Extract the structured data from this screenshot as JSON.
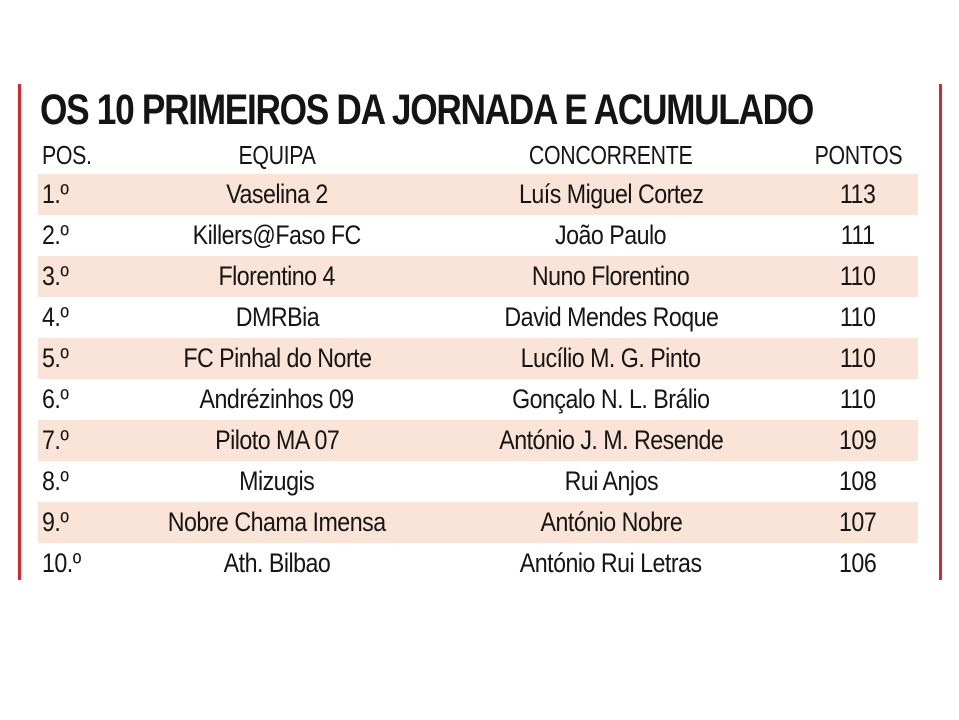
{
  "title": "OS 10 PRIMEIROS DA JORNADA E ACUMULADO",
  "colors": {
    "accent_rule": "#d8262d",
    "row_shade": "#f9e4d7",
    "text": "#151515"
  },
  "table": {
    "headers": {
      "pos": "POS.",
      "equipa": "EQUIPA",
      "concorrente": "CONCORRENTE",
      "pontos": "PONTOS"
    },
    "rows": [
      {
        "pos": "1.º",
        "equipa": "Vaselina 2",
        "concorrente": "Luís Miguel Cortez",
        "pontos": "113"
      },
      {
        "pos": "2.º",
        "equipa": "Killers@Faso FC",
        "concorrente": "João Paulo",
        "pontos": "111"
      },
      {
        "pos": "3.º",
        "equipa": "Florentino 4",
        "concorrente": "Nuno Florentino",
        "pontos": "110"
      },
      {
        "pos": "4.º",
        "equipa": "DMRBia",
        "concorrente": "David Mendes Roque",
        "pontos": "110"
      },
      {
        "pos": "5.º",
        "equipa": "FC Pinhal do Norte",
        "concorrente": "Lucílio M. G. Pinto",
        "pontos": "110"
      },
      {
        "pos": "6.º",
        "equipa": "Andrézinhos 09",
        "concorrente": "Gonçalo N. L. Brálio",
        "pontos": "110"
      },
      {
        "pos": "7.º",
        "equipa": "Piloto MA 07",
        "concorrente": "António J. M. Resende",
        "pontos": "109"
      },
      {
        "pos": "8.º",
        "equipa": "Mizugis",
        "concorrente": "Rui Anjos",
        "pontos": "108"
      },
      {
        "pos": "9.º",
        "equipa": "Nobre Chama Imensa",
        "concorrente": "António Nobre",
        "pontos": "107"
      },
      {
        "pos": "10.º",
        "equipa": "Ath. Bilbao",
        "concorrente": "António Rui Letras",
        "pontos": "106"
      }
    ]
  }
}
